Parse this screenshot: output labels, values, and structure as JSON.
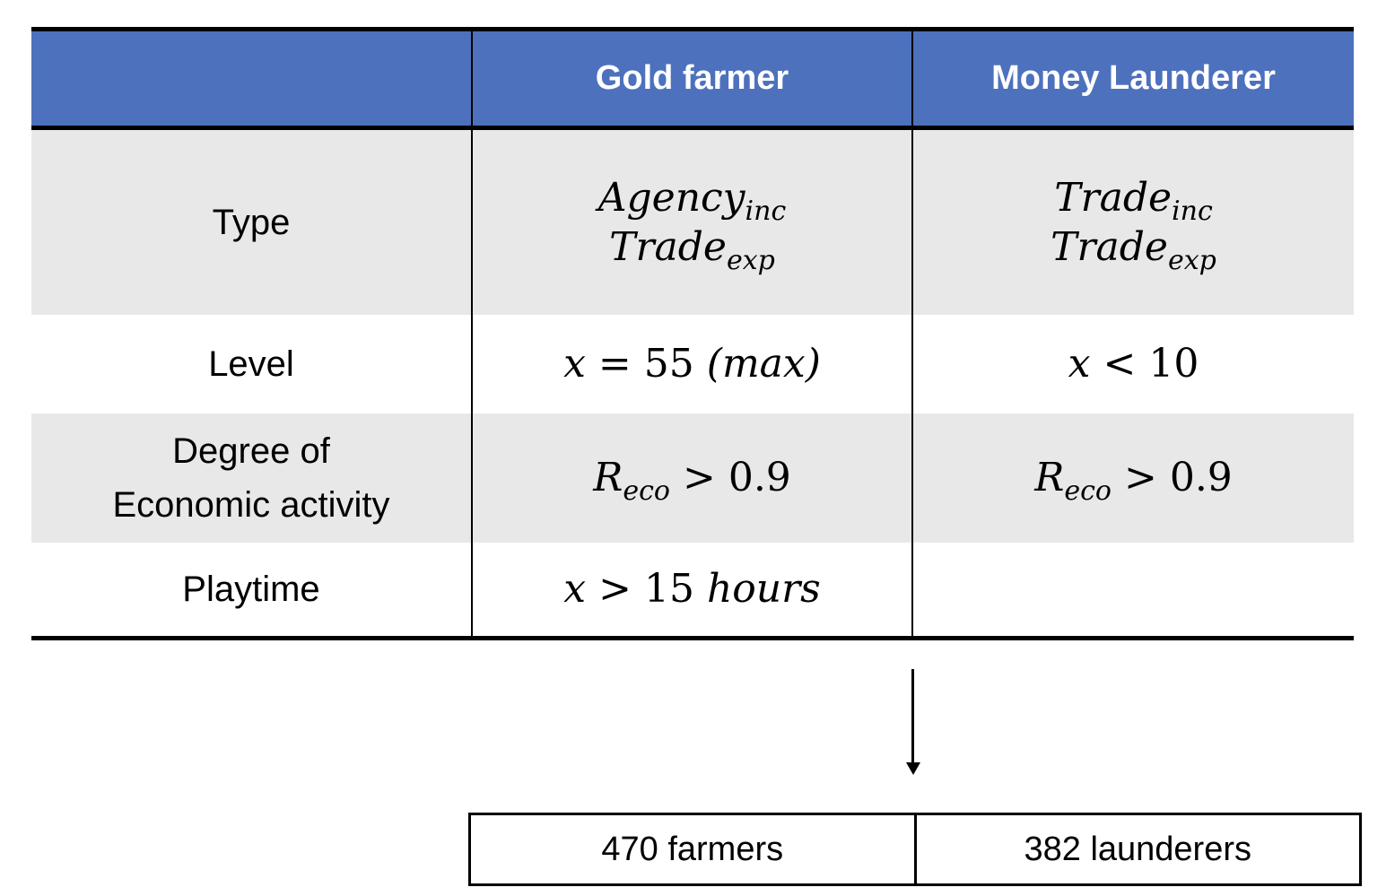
{
  "table": {
    "headers": [
      "",
      "Gold farmer",
      "Money Launderer"
    ],
    "rows": [
      {
        "label": "Type",
        "gold_farmer": {
          "line1": {
            "base": "Agency",
            "sub": "inc"
          },
          "line2": {
            "base": "Trade",
            "sub": "exp"
          }
        },
        "money_launderer": {
          "line1": {
            "base": "Trade",
            "sub": "inc"
          },
          "line2": {
            "base": "Trade",
            "sub": "exp"
          }
        }
      },
      {
        "label": "Level",
        "gold_farmer": {
          "var": "x",
          "op": "=",
          "num": "55",
          "paren": "(max)"
        },
        "money_launderer": {
          "var": "x",
          "op": "<",
          "num": "10"
        }
      },
      {
        "label_line1": "Degree of",
        "label_line2": "Economic activity",
        "gold_farmer": {
          "base": "R",
          "sub": "eco",
          "op": ">",
          "num": "0.9"
        },
        "money_launderer": {
          "base": "R",
          "sub": "eco",
          "op": ">",
          "num": "0.9"
        }
      },
      {
        "label": "Playtime",
        "gold_farmer": {
          "var": "x",
          "op": ">",
          "num": "15",
          "unit": "hours"
        },
        "money_launderer": ""
      }
    ]
  },
  "result": {
    "farmers": "470 farmers",
    "launderers": "382 launderers"
  },
  "colors": {
    "header_bg": "#4d71bd",
    "shaded_row": "#e8e8e8"
  }
}
